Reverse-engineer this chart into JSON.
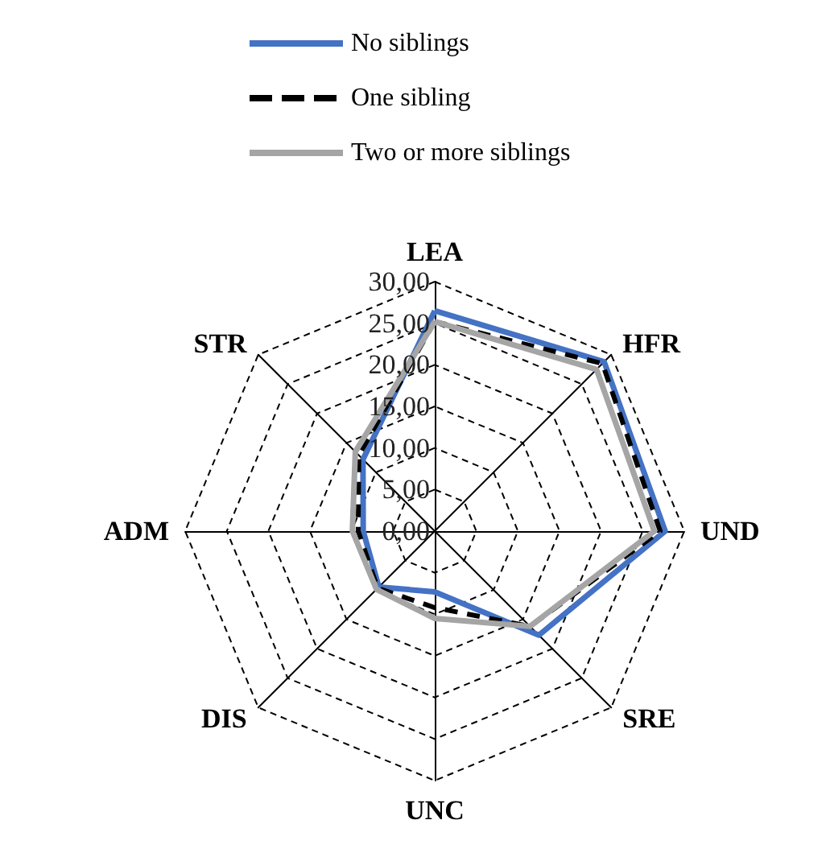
{
  "chart_data": {
    "type": "radar",
    "categories": [
      "LEA",
      "HFR",
      "UND",
      "SRE",
      "UNC",
      "DIS",
      "ADM",
      "STR"
    ],
    "series": [
      {
        "name": "No siblings",
        "color": "#4472c4",
        "line_style": "solid",
        "values": [
          26.5,
          28.8,
          27.7,
          17.7,
          7.3,
          9.5,
          8.6,
          12.2
        ]
      },
      {
        "name": "One sibling",
        "color": "#000000",
        "line_style": "dashed",
        "values": [
          25.2,
          28.5,
          27.1,
          16.2,
          9.2,
          9.7,
          9.2,
          12.9
        ]
      },
      {
        "name": "Two or more siblings",
        "color": "#a5a5a5",
        "line_style": "solid",
        "values": [
          25.2,
          27.5,
          26.4,
          16.2,
          10.5,
          9.9,
          9.9,
          13.5
        ]
      }
    ],
    "ylim": [
      0,
      30
    ],
    "yticks": [
      {
        "value": 0,
        "label": "0,00"
      },
      {
        "value": 5,
        "label": "5,00"
      },
      {
        "value": 10,
        "label": "10,00"
      },
      {
        "value": 15,
        "label": "15,00"
      },
      {
        "value": 20,
        "label": "20,00"
      },
      {
        "value": 25,
        "label": "25,00"
      },
      {
        "value": 30,
        "label": "30,00"
      }
    ],
    "legend": "top",
    "marker": "none"
  }
}
